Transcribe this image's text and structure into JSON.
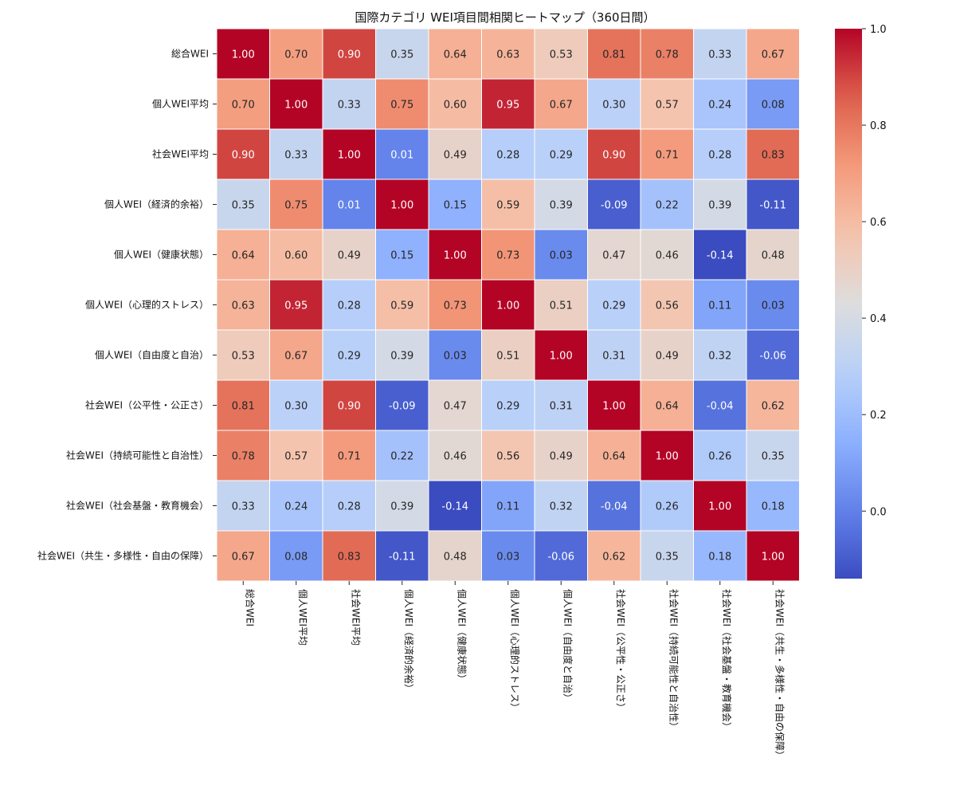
{
  "chart_data": {
    "type": "heatmap",
    "title": "国際カテゴリ WEI項目間相関ヒートマップ（360日間）",
    "colormap": "coolwarm",
    "value_range": [
      -0.14,
      1.0
    ],
    "colorbar_ticks": [
      "0.0",
      "0.2",
      "0.4",
      "0.6",
      "0.8",
      "1.0"
    ],
    "colorbar_tick_values": [
      0.0,
      0.2,
      0.4,
      0.6,
      0.8,
      1.0
    ],
    "annotation_format": "2 decimals",
    "rows": [
      "総合WEI",
      "個人WEI平均",
      "社会WEI平均",
      "個人WEI（経済的余裕）",
      "個人WEI（健康状態）",
      "個人WEI（心理的ストレス）",
      "個人WEI（自由度と自治）",
      "社会WEI（公平性・公正さ）",
      "社会WEI（持続可能性と自治性）",
      "社会WEI（社会基盤・教育機会）",
      "社会WEI（共生・多様性・自由の保障）"
    ],
    "columns": [
      "総合WEI",
      "個人WEI平均",
      "社会WEI平均",
      "個人WEI（経済的余裕）",
      "個人WEI（健康状態）",
      "個人WEI（心理的ストレス）",
      "個人WEI（自由度と自治）",
      "社会WEI（公平性・公正さ）",
      "社会WEI（持続可能性と自治性）",
      "社会WEI（社会基盤・教育機会）",
      "社会WEI（共生・多様性・自由の保障）"
    ],
    "values": [
      [
        1.0,
        0.7,
        0.9,
        0.35,
        0.64,
        0.63,
        0.53,
        0.81,
        0.78,
        0.33,
        0.67
      ],
      [
        0.7,
        1.0,
        0.33,
        0.75,
        0.6,
        0.95,
        0.67,
        0.3,
        0.57,
        0.24,
        0.08
      ],
      [
        0.9,
        0.33,
        1.0,
        0.01,
        0.49,
        0.28,
        0.29,
        0.9,
        0.71,
        0.28,
        0.83
      ],
      [
        0.35,
        0.75,
        0.01,
        1.0,
        0.15,
        0.59,
        0.39,
        -0.09,
        0.22,
        0.39,
        -0.11
      ],
      [
        0.64,
        0.6,
        0.49,
        0.15,
        1.0,
        0.73,
        0.03,
        0.47,
        0.46,
        -0.14,
        0.48
      ],
      [
        0.63,
        0.95,
        0.28,
        0.59,
        0.73,
        1.0,
        0.51,
        0.29,
        0.56,
        0.11,
        0.03
      ],
      [
        0.53,
        0.67,
        0.29,
        0.39,
        0.03,
        0.51,
        1.0,
        0.31,
        0.49,
        0.32,
        -0.06
      ],
      [
        0.81,
        0.3,
        0.9,
        -0.09,
        0.47,
        0.29,
        0.31,
        1.0,
        0.64,
        -0.04,
        0.62
      ],
      [
        0.78,
        0.57,
        0.71,
        0.22,
        0.46,
        0.56,
        0.49,
        0.64,
        1.0,
        0.26,
        0.35
      ],
      [
        0.33,
        0.24,
        0.28,
        0.39,
        -0.14,
        0.11,
        0.32,
        -0.04,
        0.26,
        1.0,
        0.18
      ],
      [
        0.67,
        0.08,
        0.83,
        -0.11,
        0.48,
        0.03,
        -0.06,
        0.62,
        0.35,
        0.18,
        1.0
      ]
    ]
  }
}
